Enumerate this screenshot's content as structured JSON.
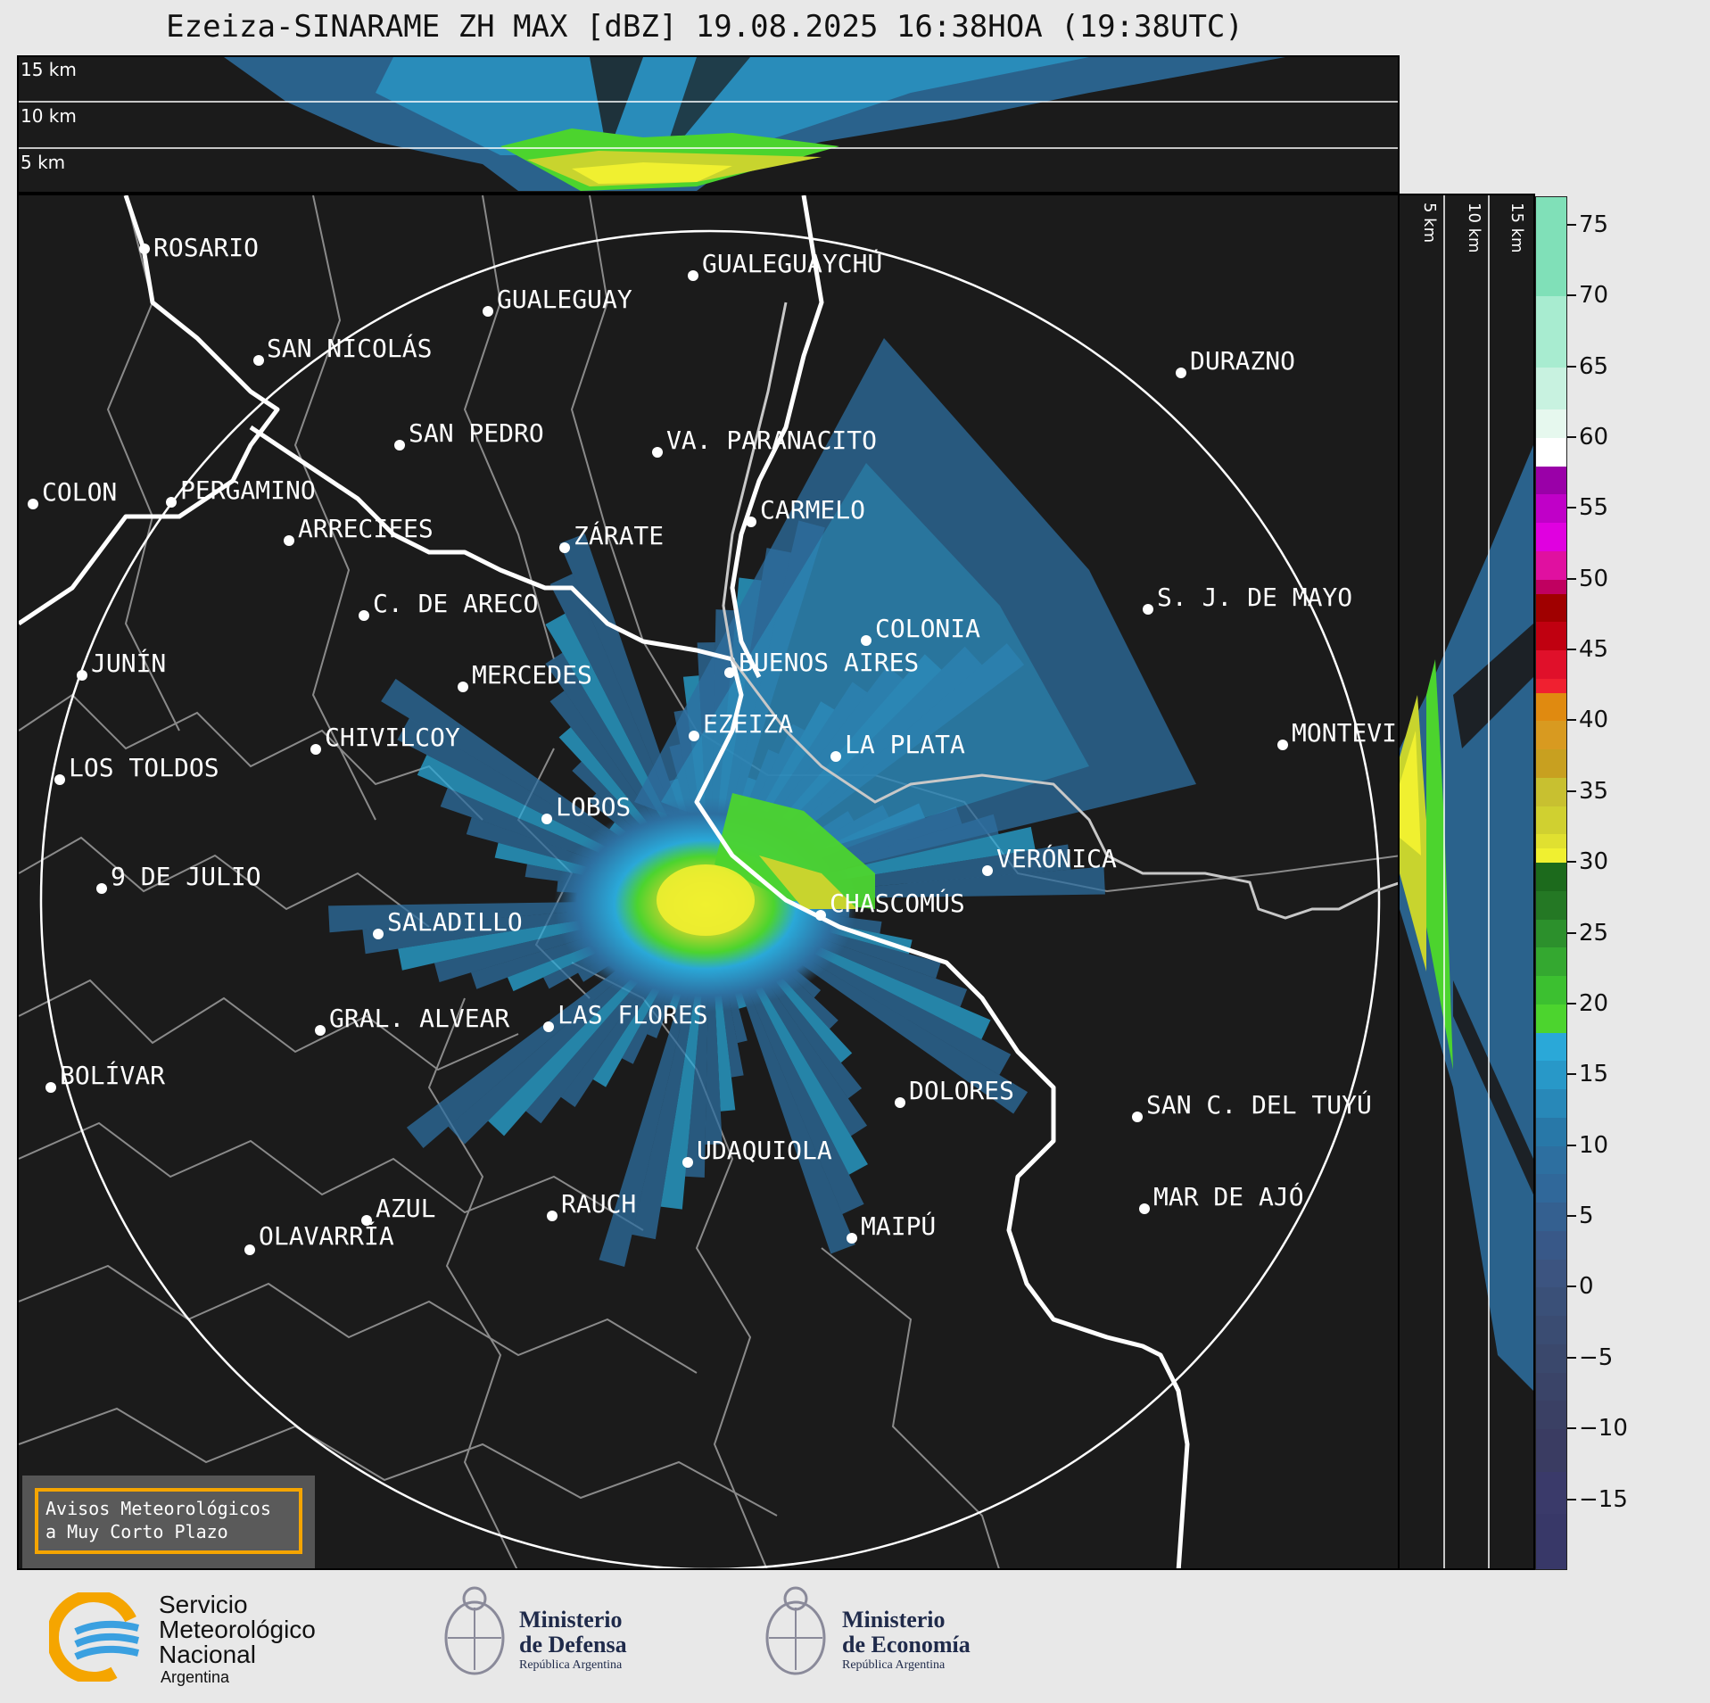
{
  "title": "Ezeiza-SINARAME ZH MAX [dBZ] 19.08.2025 16:38HOA (19:38UTC)",
  "top_strip": {
    "altitude_labels": [
      "15 km",
      "10 km",
      "5 km"
    ]
  },
  "side_strip": {
    "altitude_labels": [
      "5 km",
      "10 km",
      "15 km"
    ]
  },
  "colorbar": {
    "unit": "dBZ",
    "ticks": [
      "75",
      "70",
      "65",
      "60",
      "55",
      "50",
      "45",
      "40",
      "35",
      "30",
      "25",
      "20",
      "15",
      "10",
      "5",
      "0",
      "−5",
      "−10",
      "−15"
    ],
    "min": -20,
    "max": 77,
    "colors": {
      "low": "#3a3a6a",
      "mid_low": "#2d6fa0",
      "cyan": "#2aa8d8",
      "green_light": "#4cd42e",
      "green_dark": "#1c6a1c",
      "yellow": "#f0f030",
      "orange": "#e08a10",
      "red": "#e0102a",
      "darkred": "#a00000",
      "magenta": "#e000e0",
      "purple": "#9a00a8",
      "white": "#ffffff",
      "mint": "#80e0b8"
    }
  },
  "cities": [
    {
      "name": "ROSARIO"
    },
    {
      "name": "GUALEGUAYCHÚ"
    },
    {
      "name": "GUALEGUAY"
    },
    {
      "name": "SAN NICOLÁS"
    },
    {
      "name": "DURAZNO"
    },
    {
      "name": "SAN PEDRO"
    },
    {
      "name": "VA. PARANACITO"
    },
    {
      "name": "COLON"
    },
    {
      "name": "PERGAMINO"
    },
    {
      "name": "CARMELO"
    },
    {
      "name": "ARRECIFES"
    },
    {
      "name": "ZÁRATE"
    },
    {
      "name": "S. J. DE MAYO"
    },
    {
      "name": "C. DE ARECO"
    },
    {
      "name": "COLONIA"
    },
    {
      "name": "JUNÍN"
    },
    {
      "name": "MERCEDES"
    },
    {
      "name": "BUENOS AIRES"
    },
    {
      "name": "EZEIZA"
    },
    {
      "name": "MONTEVIDEO"
    },
    {
      "name": "CHIVILCOY"
    },
    {
      "name": "LA PLATA"
    },
    {
      "name": "LOS TOLDOS"
    },
    {
      "name": "LOBOS"
    },
    {
      "name": "VERÓNICA"
    },
    {
      "name": "9 DE JULIO"
    },
    {
      "name": "CHASCOMÚS"
    },
    {
      "name": "SALADILLO"
    },
    {
      "name": "GRAL. ALVEAR"
    },
    {
      "name": "LAS FLORES"
    },
    {
      "name": "BOLÍVAR"
    },
    {
      "name": "DOLORES"
    },
    {
      "name": "SAN C. DEL TUYÚ"
    },
    {
      "name": "UDAQUIOLA"
    },
    {
      "name": "MAR DE AJÓ"
    },
    {
      "name": "AZUL"
    },
    {
      "name": "RAUCH"
    },
    {
      "name": "MAIPÚ"
    },
    {
      "name": "OLAVARRÍA"
    }
  ],
  "alert_box": {
    "line1": "Avisos Meteorológicos",
    "line2": "a Muy Corto Plazo"
  },
  "footer": {
    "smn": {
      "line1": "Servicio",
      "line2": "Meteorológico",
      "line3": "Nacional",
      "line4": "Argentina"
    },
    "defensa": {
      "line1": "Ministerio",
      "line2": "de Defensa",
      "line3": "República Argentina"
    },
    "economia": {
      "line1": "Ministerio",
      "line2": "de Economía",
      "line3": "República Argentina"
    }
  }
}
